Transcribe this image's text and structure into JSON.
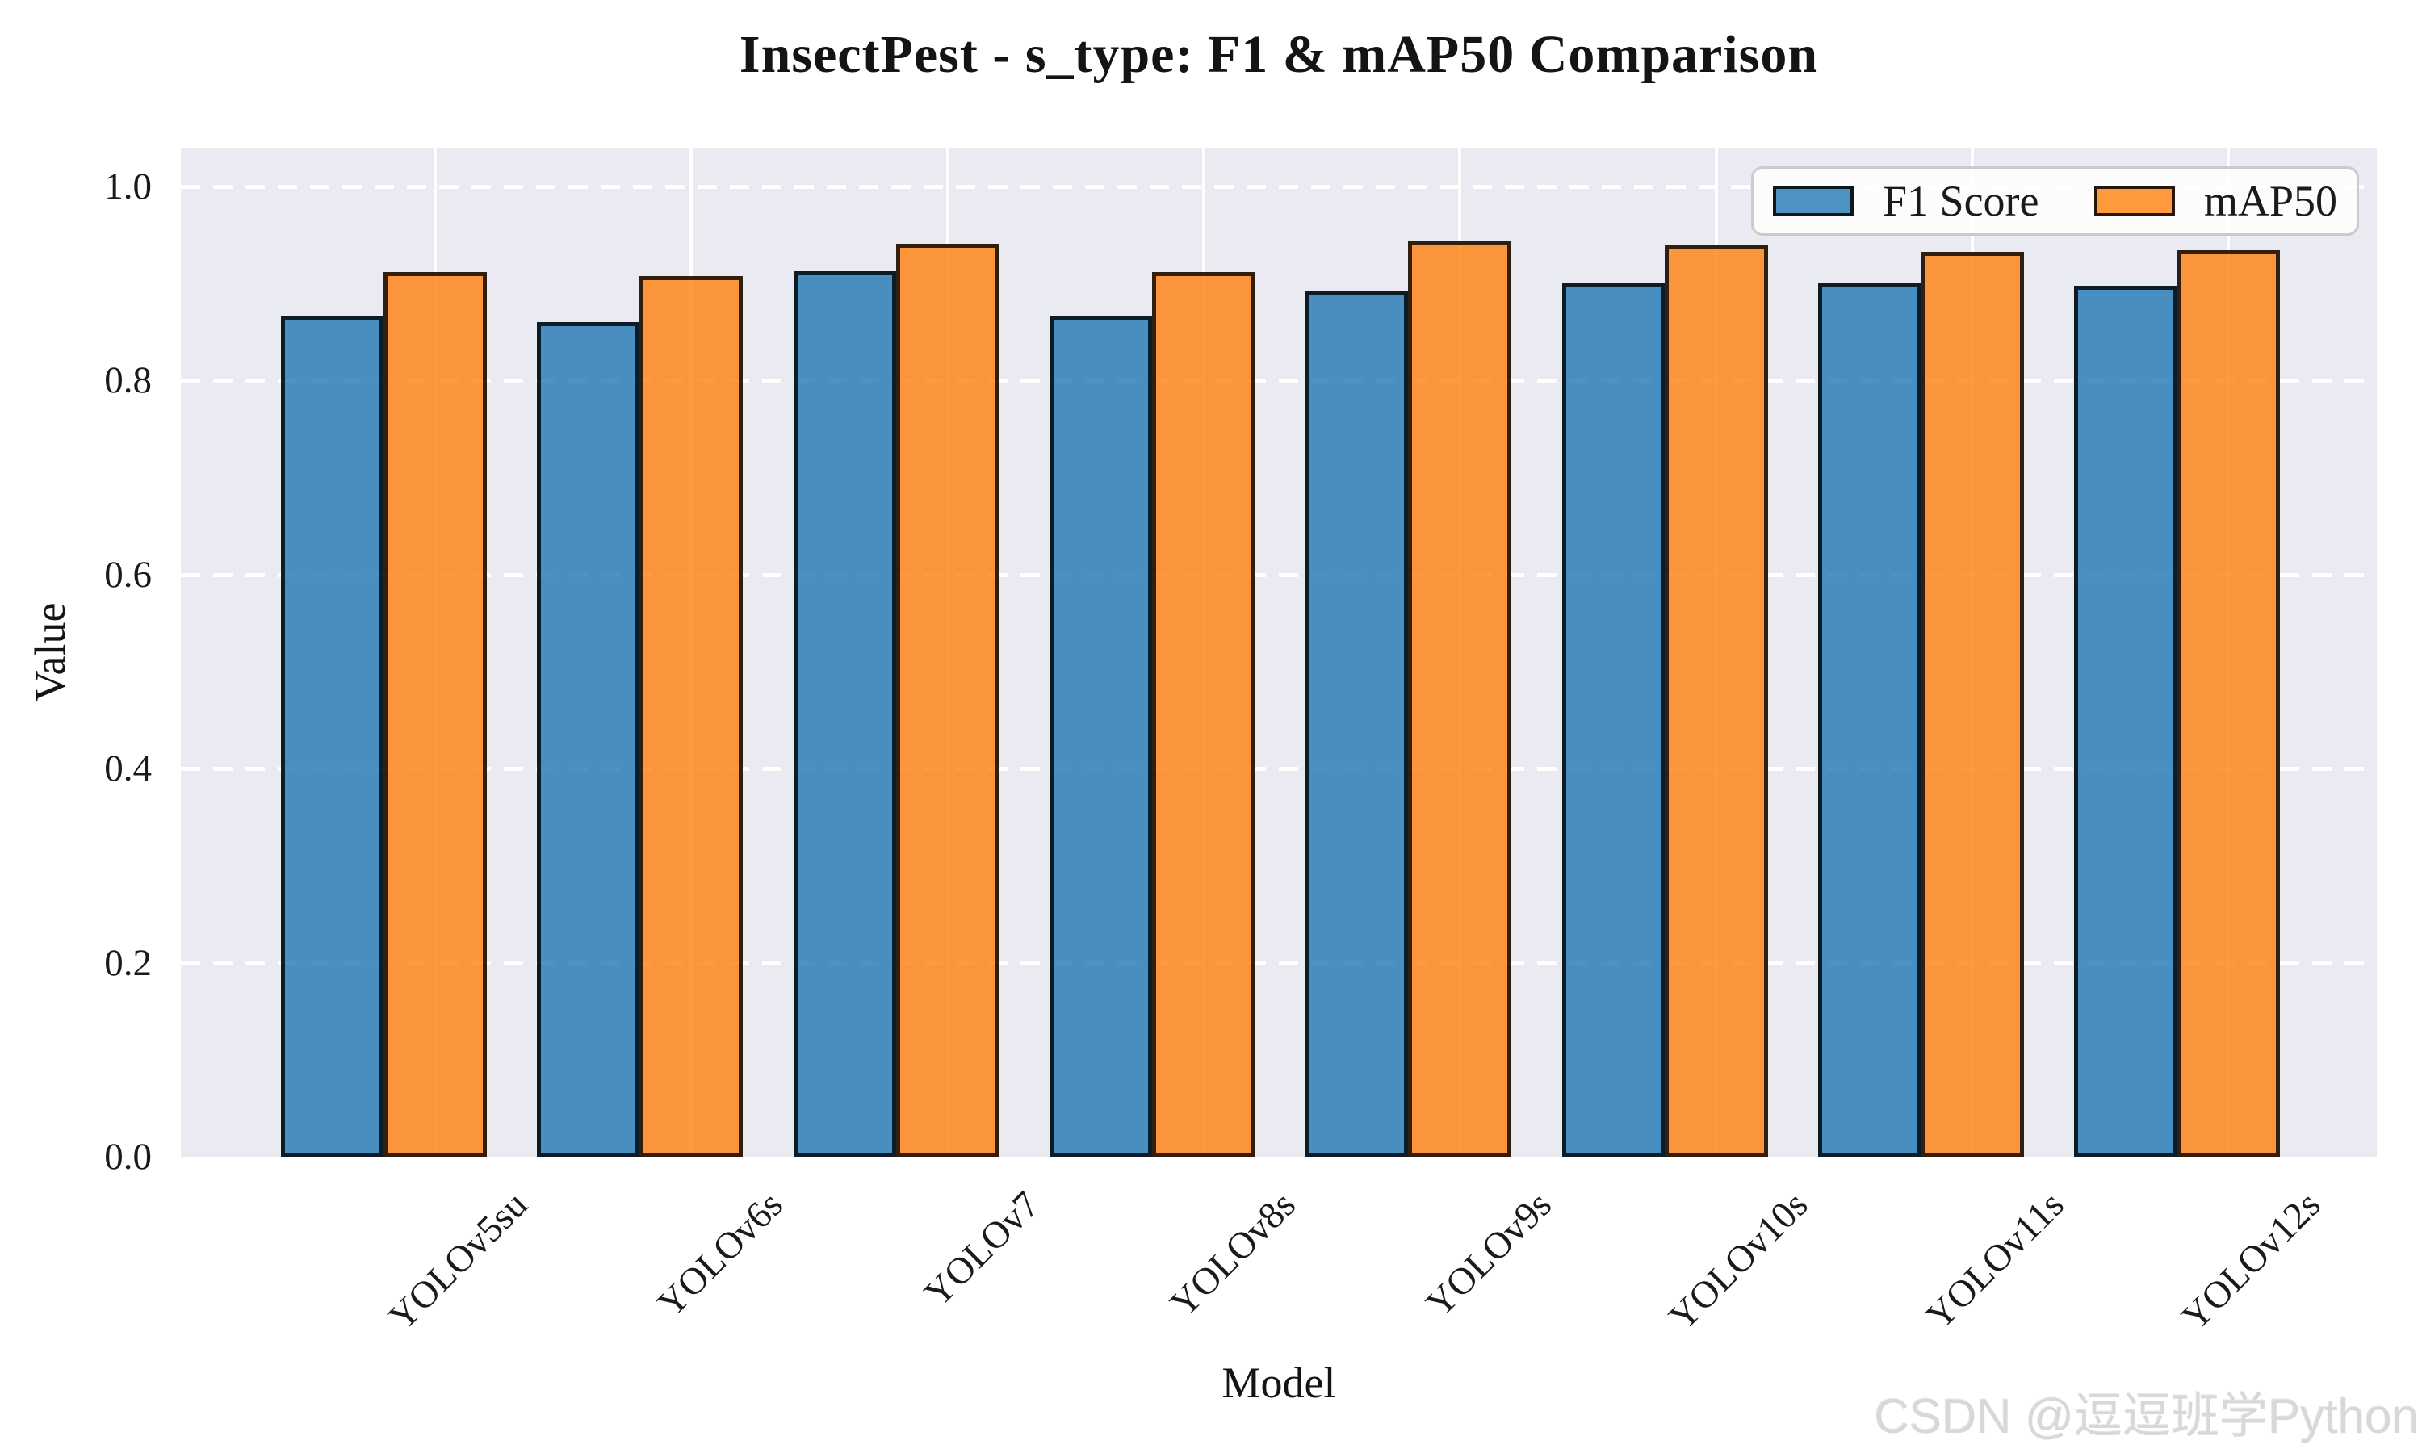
{
  "title": "InsectPest - s_type: F1 & mAP50 Comparison",
  "watermark": "CSDN @逗逗班学Python",
  "chart_data": {
    "type": "bar",
    "title": "InsectPest - s_type: F1 & mAP50 Comparison",
    "xlabel": "Model",
    "ylabel": "Value",
    "categories": [
      "YOLOv5su",
      "YOLOv6s",
      "YOLOv7",
      "YOLOv8s",
      "YOLOv9s",
      "YOLOv10s",
      "YOLOv11s",
      "YOLOv12s"
    ],
    "series": [
      {
        "name": "F1 Score",
        "color": "#1f77b4",
        "values": [
          0.867,
          0.86,
          0.913,
          0.866,
          0.892,
          0.9,
          0.9,
          0.898
        ]
      },
      {
        "name": "mAP50",
        "color": "#ff7f0e",
        "values": [
          0.912,
          0.908,
          0.941,
          0.912,
          0.944,
          0.94,
          0.933,
          0.934
        ]
      }
    ],
    "ylim": [
      0,
      1.04
    ],
    "ytick_labels": [
      "0.0",
      "0.2",
      "0.4",
      "0.6",
      "0.8",
      "1.0"
    ],
    "grid": true,
    "grid_color": "#ffffff",
    "grid_style_horizontal": "dashed",
    "grid_style_vertical": "solid",
    "legend_position": "upper right",
    "plot_background": "#eaeaf2",
    "figure_background": "#ffffff",
    "bar_alpha": 0.8,
    "bar_edge_color": "#000000"
  }
}
